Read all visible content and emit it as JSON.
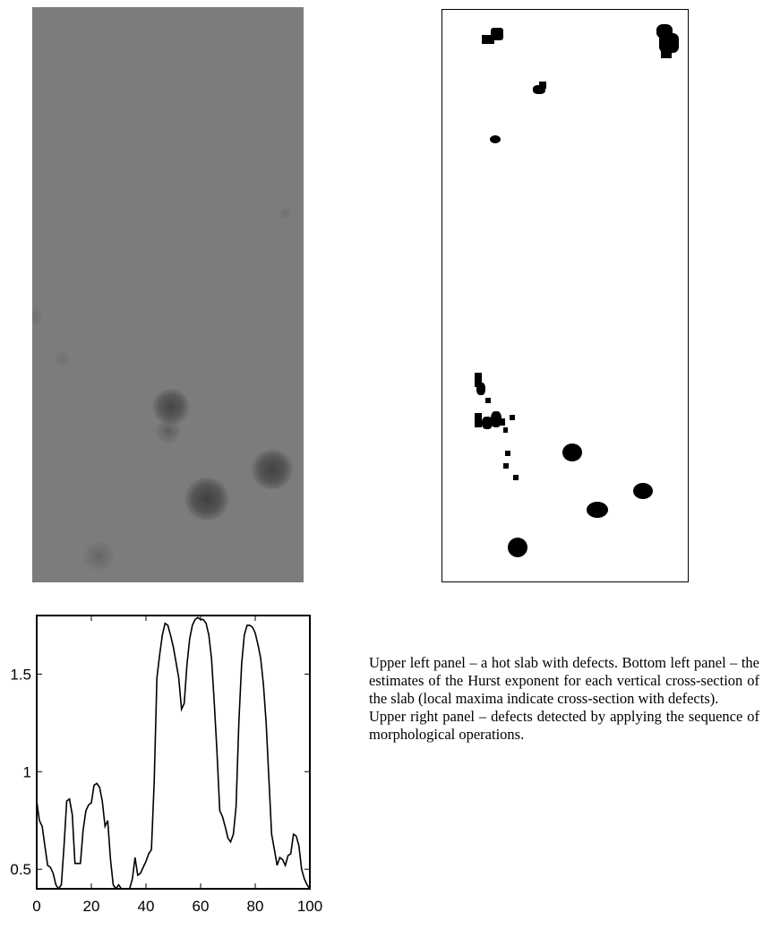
{
  "figure": {
    "caption_lines": [
      "Upper left panel – a hot slab with defects. Bottom left panel – the estimates of the Hurst exponent for each vertical cross-section of the slab (local maxima indicate cross-section with defects).",
      "Upper right panel – defects detected by applying the sequence of morphological operations."
    ]
  },
  "chart_data": {
    "type": "line",
    "title": "",
    "xlabel": "",
    "ylabel": "",
    "xlim": [
      0,
      100
    ],
    "ylim": [
      0.4,
      1.8
    ],
    "xticks": [
      0,
      20,
      40,
      60,
      80,
      100
    ],
    "yticks": [
      0.5,
      1,
      1.5
    ],
    "xtick_labels": [
      "0",
      "20",
      "40",
      "60",
      "80",
      "100"
    ],
    "ytick_labels": [
      "0.5",
      "1",
      "1.5"
    ],
    "grid": false,
    "series": [
      {
        "x": [
          0,
          1,
          2,
          3,
          4,
          5,
          6,
          7,
          8,
          9,
          10,
          11,
          12,
          13,
          14,
          15,
          16,
          17,
          18,
          19,
          20,
          21,
          22,
          23,
          24,
          25,
          26,
          27,
          28,
          29,
          30,
          31,
          32,
          33,
          34,
          35,
          36,
          37,
          38,
          39,
          40,
          41,
          42,
          43,
          44,
          45,
          46,
          47,
          48,
          49,
          50,
          51,
          52,
          53,
          54,
          55,
          56,
          57,
          58,
          59,
          60,
          61,
          62,
          63,
          64,
          65,
          66,
          67,
          68,
          69,
          70,
          71,
          72,
          73,
          74,
          75,
          76,
          77,
          78,
          79,
          80,
          81,
          82,
          83,
          84,
          85,
          86,
          87,
          88,
          89,
          90,
          91,
          92,
          93,
          94,
          95,
          96,
          97,
          98,
          99,
          100
        ],
        "values": [
          0.85,
          0.75,
          0.72,
          0.62,
          0.52,
          0.51,
          0.48,
          0.42,
          0.4,
          0.42,
          0.62,
          0.85,
          0.86,
          0.78,
          0.53,
          0.53,
          0.53,
          0.7,
          0.8,
          0.83,
          0.84,
          0.93,
          0.94,
          0.92,
          0.85,
          0.72,
          0.75,
          0.55,
          0.42,
          0.4,
          0.42,
          0.4,
          0.38,
          0.38,
          0.38,
          0.45,
          0.56,
          0.47,
          0.48,
          0.51,
          0.54,
          0.58,
          0.6,
          0.95,
          1.48,
          1.6,
          1.7,
          1.76,
          1.75,
          1.7,
          1.64,
          1.56,
          1.48,
          1.32,
          1.35,
          1.55,
          1.68,
          1.75,
          1.78,
          1.79,
          1.78,
          1.78,
          1.76,
          1.7,
          1.58,
          1.35,
          1.1,
          0.8,
          0.77,
          0.72,
          0.66,
          0.64,
          0.68,
          0.82,
          1.25,
          1.55,
          1.7,
          1.75,
          1.75,
          1.74,
          1.71,
          1.65,
          1.58,
          1.45,
          1.25,
          0.96,
          0.68,
          0.6,
          0.52,
          0.56,
          0.55,
          0.52,
          0.57,
          0.58,
          0.68,
          0.67,
          0.62,
          0.5,
          0.45,
          0.42,
          0.4
        ]
      }
    ]
  }
}
